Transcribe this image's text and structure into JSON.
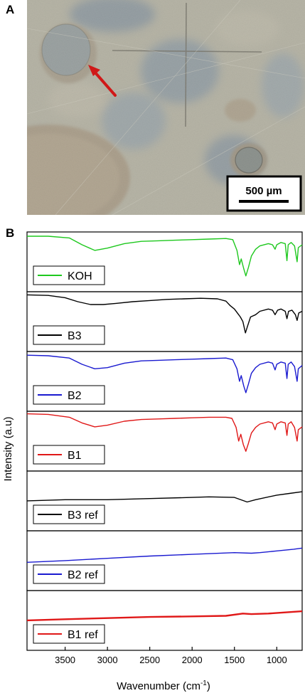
{
  "panels": {
    "a_label": "A",
    "b_label": "B"
  },
  "photo": {
    "scale_bar_label": "500 µm",
    "colors": {
      "background": "#b9b6a8",
      "blue_stain": "#5d7aa0",
      "arrow": "#d01818"
    }
  },
  "chart_data": {
    "type": "line",
    "stacked": true,
    "x_reversed": true,
    "xlabel": "Wavenumber (cm",
    "xlabel_sup": "-1",
    "xlabel_close": ")",
    "ylabel": "Intensity (a.u)",
    "xlim": [
      3950,
      700
    ],
    "xticks": [
      3500,
      3000,
      2500,
      2000,
      1500,
      1000
    ],
    "grid": false,
    "legend": "bottom-left of each stacked panel",
    "series": [
      {
        "name": "KOH",
        "color": "#1ec81e",
        "points": [
          [
            3950,
            0.95
          ],
          [
            3700,
            0.95
          ],
          [
            3450,
            0.92
          ],
          [
            3300,
            0.8
          ],
          [
            3150,
            0.7
          ],
          [
            3000,
            0.74
          ],
          [
            2800,
            0.82
          ],
          [
            2600,
            0.86
          ],
          [
            2400,
            0.87
          ],
          [
            2200,
            0.88
          ],
          [
            2000,
            0.89
          ],
          [
            1800,
            0.9
          ],
          [
            1600,
            0.91
          ],
          [
            1520,
            0.89
          ],
          [
            1470,
            0.7
          ],
          [
            1440,
            0.45
          ],
          [
            1420,
            0.55
          ],
          [
            1390,
            0.38
          ],
          [
            1365,
            0.25
          ],
          [
            1335,
            0.4
          ],
          [
            1300,
            0.6
          ],
          [
            1250,
            0.72
          ],
          [
            1200,
            0.78
          ],
          [
            1100,
            0.82
          ],
          [
            1050,
            0.8
          ],
          [
            1020,
            0.72
          ],
          [
            1000,
            0.8
          ],
          [
            950,
            0.84
          ],
          [
            900,
            0.82
          ],
          [
            880,
            0.52
          ],
          [
            865,
            0.8
          ],
          [
            830,
            0.84
          ],
          [
            790,
            0.78
          ],
          [
            760,
            0.5
          ],
          [
            745,
            0.75
          ],
          [
            700,
            0.8
          ]
        ]
      },
      {
        "name": "B3",
        "color": "#000000",
        "points": [
          [
            3950,
            0.97
          ],
          [
            3700,
            0.96
          ],
          [
            3500,
            0.92
          ],
          [
            3350,
            0.85
          ],
          [
            3200,
            0.8
          ],
          [
            3050,
            0.8
          ],
          [
            2900,
            0.82
          ],
          [
            2700,
            0.85
          ],
          [
            2500,
            0.87
          ],
          [
            2300,
            0.89
          ],
          [
            2100,
            0.9
          ],
          [
            1900,
            0.91
          ],
          [
            1700,
            0.9
          ],
          [
            1600,
            0.86
          ],
          [
            1550,
            0.78
          ],
          [
            1500,
            0.72
          ],
          [
            1460,
            0.64
          ],
          [
            1430,
            0.58
          ],
          [
            1400,
            0.5
          ],
          [
            1370,
            0.3
          ],
          [
            1345,
            0.42
          ],
          [
            1310,
            0.58
          ],
          [
            1250,
            0.62
          ],
          [
            1200,
            0.68
          ],
          [
            1100,
            0.72
          ],
          [
            1050,
            0.7
          ],
          [
            1020,
            0.62
          ],
          [
            990,
            0.7
          ],
          [
            950,
            0.72
          ],
          [
            900,
            0.68
          ],
          [
            880,
            0.55
          ],
          [
            860,
            0.68
          ],
          [
            820,
            0.7
          ],
          [
            780,
            0.62
          ],
          [
            760,
            0.52
          ],
          [
            740,
            0.65
          ],
          [
            700,
            0.68
          ]
        ]
      },
      {
        "name": "B2",
        "color": "#1a1ad0",
        "points": [
          [
            3950,
            0.96
          ],
          [
            3700,
            0.95
          ],
          [
            3450,
            0.91
          ],
          [
            3300,
            0.8
          ],
          [
            3150,
            0.72
          ],
          [
            3000,
            0.74
          ],
          [
            2800,
            0.82
          ],
          [
            2600,
            0.86
          ],
          [
            2400,
            0.87
          ],
          [
            2200,
            0.88
          ],
          [
            2000,
            0.89
          ],
          [
            1800,
            0.9
          ],
          [
            1600,
            0.91
          ],
          [
            1520,
            0.88
          ],
          [
            1470,
            0.72
          ],
          [
            1440,
            0.5
          ],
          [
            1420,
            0.6
          ],
          [
            1390,
            0.42
          ],
          [
            1365,
            0.3
          ],
          [
            1335,
            0.45
          ],
          [
            1300,
            0.64
          ],
          [
            1250,
            0.74
          ],
          [
            1200,
            0.8
          ],
          [
            1100,
            0.84
          ],
          [
            1050,
            0.82
          ],
          [
            1020,
            0.7
          ],
          [
            1000,
            0.8
          ],
          [
            950,
            0.84
          ],
          [
            900,
            0.82
          ],
          [
            880,
            0.55
          ],
          [
            865,
            0.8
          ],
          [
            830,
            0.84
          ],
          [
            790,
            0.76
          ],
          [
            760,
            0.5
          ],
          [
            745,
            0.72
          ],
          [
            700,
            0.78
          ]
        ]
      },
      {
        "name": "B1",
        "color": "#e01818",
        "points": [
          [
            3950,
            0.98
          ],
          [
            3700,
            0.97
          ],
          [
            3450,
            0.92
          ],
          [
            3300,
            0.82
          ],
          [
            3150,
            0.75
          ],
          [
            3000,
            0.78
          ],
          [
            2800,
            0.85
          ],
          [
            2600,
            0.88
          ],
          [
            2400,
            0.89
          ],
          [
            2200,
            0.9
          ],
          [
            2000,
            0.91
          ],
          [
            1800,
            0.92
          ],
          [
            1600,
            0.92
          ],
          [
            1530,
            0.9
          ],
          [
            1480,
            0.74
          ],
          [
            1450,
            0.5
          ],
          [
            1425,
            0.62
          ],
          [
            1395,
            0.44
          ],
          [
            1365,
            0.32
          ],
          [
            1335,
            0.46
          ],
          [
            1300,
            0.64
          ],
          [
            1250,
            0.74
          ],
          [
            1200,
            0.8
          ],
          [
            1100,
            0.84
          ],
          [
            1050,
            0.82
          ],
          [
            1020,
            0.7
          ],
          [
            1000,
            0.8
          ],
          [
            950,
            0.84
          ],
          [
            900,
            0.82
          ],
          [
            880,
            0.6
          ],
          [
            865,
            0.8
          ],
          [
            830,
            0.84
          ],
          [
            790,
            0.74
          ],
          [
            760,
            0.5
          ],
          [
            745,
            0.7
          ],
          [
            700,
            0.75
          ]
        ]
      },
      {
        "name": "B3 ref",
        "color": "#000000",
        "points": [
          [
            3950,
            0.5
          ],
          [
            3500,
            0.52
          ],
          [
            3000,
            0.52
          ],
          [
            2500,
            0.54
          ],
          [
            2000,
            0.56
          ],
          [
            1800,
            0.57
          ],
          [
            1500,
            0.56
          ],
          [
            1350,
            0.48
          ],
          [
            1250,
            0.52
          ],
          [
            1000,
            0.6
          ],
          [
            850,
            0.63
          ],
          [
            700,
            0.66
          ]
        ]
      },
      {
        "name": "B2 ref",
        "color": "#1a1ad0",
        "points": [
          [
            3950,
            0.47
          ],
          [
            3500,
            0.5
          ],
          [
            3000,
            0.54
          ],
          [
            2500,
            0.58
          ],
          [
            2000,
            0.61
          ],
          [
            1500,
            0.64
          ],
          [
            1300,
            0.63
          ],
          [
            1200,
            0.64
          ],
          [
            1000,
            0.67
          ],
          [
            800,
            0.7
          ],
          [
            700,
            0.72
          ]
        ]
      },
      {
        "name": "B1 ref",
        "color": "#e01818",
        "points": [
          [
            3950,
            0.5
          ],
          [
            3500,
            0.52
          ],
          [
            3000,
            0.54
          ],
          [
            2500,
            0.56
          ],
          [
            2000,
            0.57
          ],
          [
            1600,
            0.58
          ],
          [
            1400,
            0.62
          ],
          [
            1300,
            0.61
          ],
          [
            1100,
            0.62
          ],
          [
            900,
            0.64
          ],
          [
            700,
            0.66
          ]
        ]
      }
    ]
  }
}
